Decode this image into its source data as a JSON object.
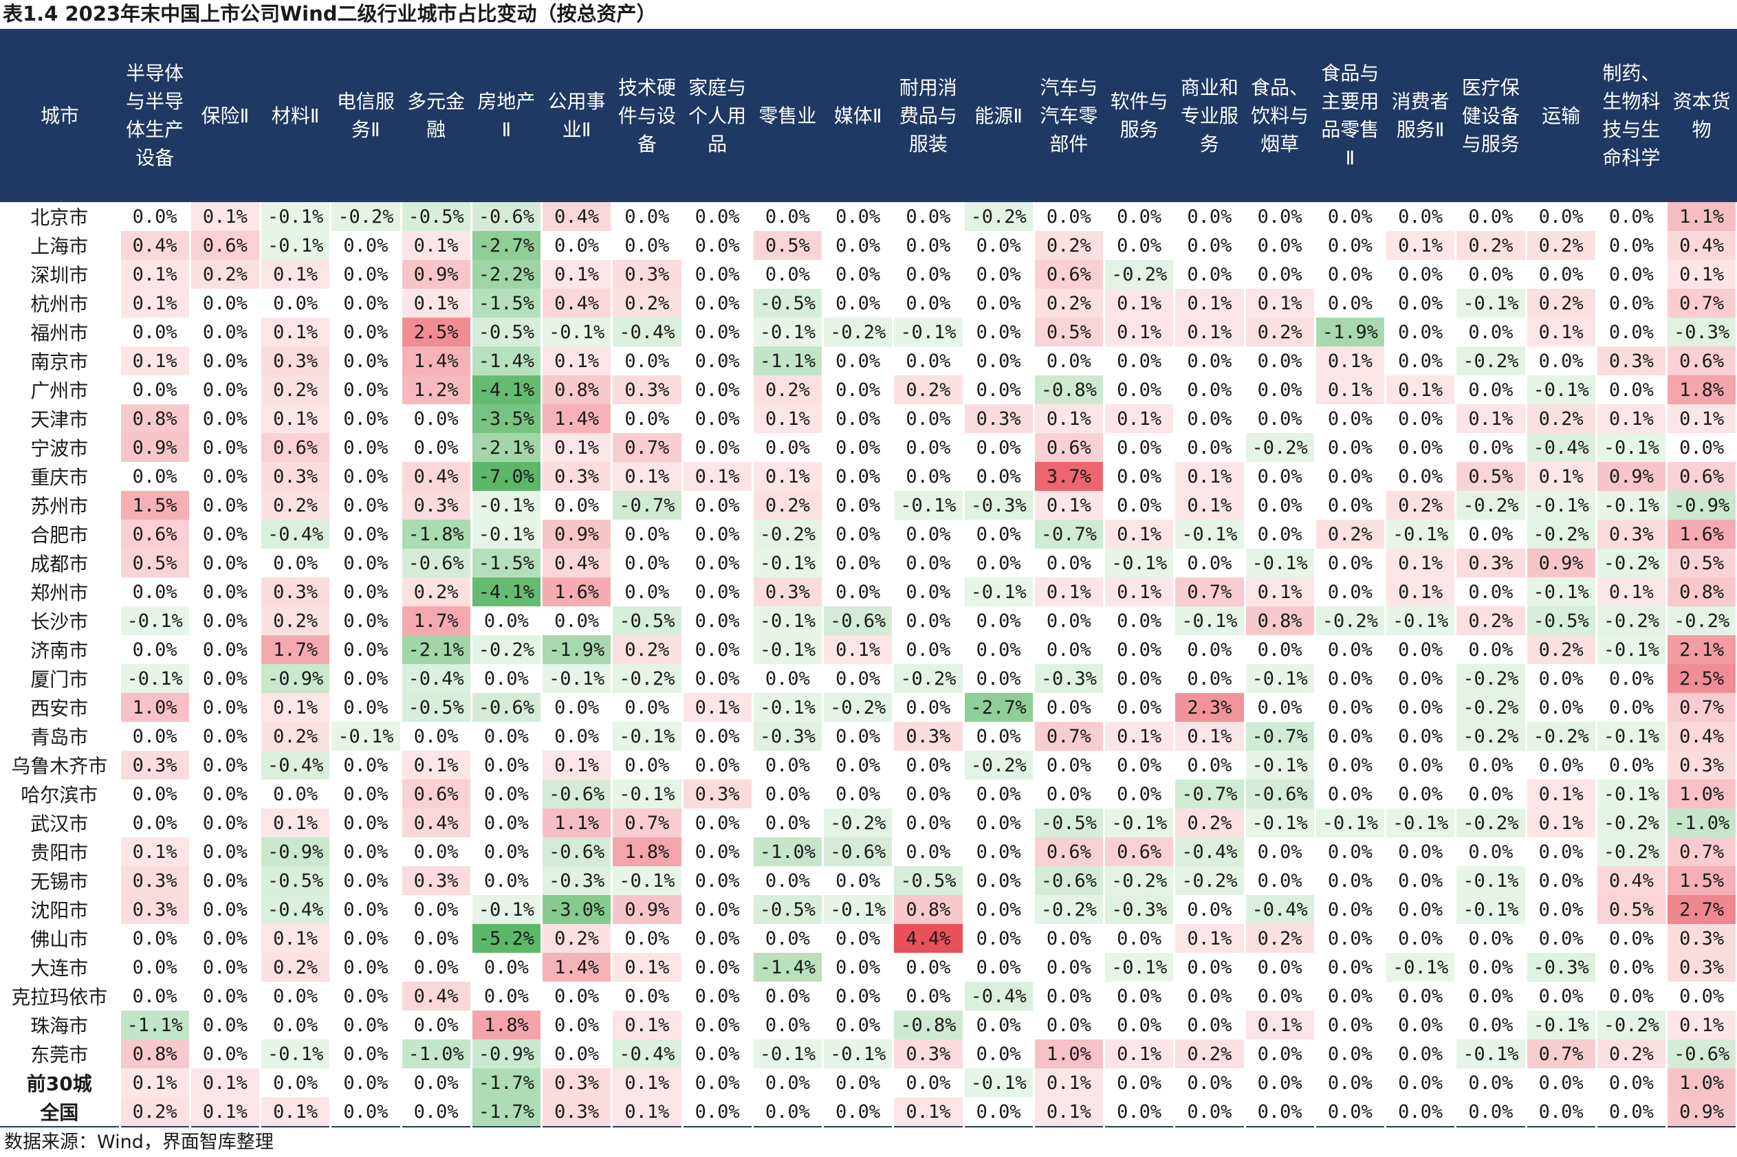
{
  "title": "表1.4 2023年末中国上市公司Wind二级行业城市占比变动（按总资产）",
  "source": "数据来源：Wind，界面智库整理",
  "colors": {
    "header_bg": "#1f3864",
    "header_text": "#ffffff",
    "positive": "#e8505a",
    "negative": "#5cb868"
  },
  "table": {
    "columns": [
      "城市",
      "半导体与半导体生产设备",
      "保险Ⅱ",
      "材料Ⅱ",
      "电信服务Ⅱ",
      "多元金融",
      "房地产Ⅱ",
      "公用事业Ⅱ",
      "技术硬件与设备",
      "家庭与个人用品",
      "零售业",
      "媒体Ⅱ",
      "耐用消费品与服装",
      "能源Ⅱ",
      "汽车与汽车零部件",
      "软件与服务",
      "商业和专业服务",
      "食品、饮料与烟草",
      "食品与主要用品零售Ⅱ",
      "消费者服务Ⅱ",
      "医疗保健设备与服务",
      "运输",
      "制药、生物科技与生命科学",
      "资本货物"
    ],
    "rows": [
      {
        "city": "北京市",
        "values": [
          "0.0%",
          "0.1%",
          "-0.1%",
          "-0.2%",
          "-0.5%",
          "-0.6%",
          "0.4%",
          "0.0%",
          "0.0%",
          "0.0%",
          "0.0%",
          "0.0%",
          "-0.2%",
          "0.0%",
          "0.0%",
          "0.0%",
          "0.0%",
          "0.0%",
          "0.0%",
          "0.0%",
          "0.0%",
          "0.0%",
          "1.1%"
        ]
      },
      {
        "city": "上海市",
        "values": [
          "0.4%",
          "0.6%",
          "-0.1%",
          "0.0%",
          "0.1%",
          "-2.7%",
          "0.0%",
          "0.0%",
          "0.0%",
          "0.5%",
          "0.0%",
          "0.0%",
          "0.0%",
          "0.2%",
          "0.0%",
          "0.0%",
          "0.0%",
          "0.0%",
          "0.1%",
          "0.2%",
          "0.2%",
          "0.0%",
          "0.4%"
        ]
      },
      {
        "city": "深圳市",
        "values": [
          "0.1%",
          "0.2%",
          "0.1%",
          "0.0%",
          "0.9%",
          "-2.2%",
          "0.1%",
          "0.3%",
          "0.0%",
          "0.0%",
          "0.0%",
          "0.0%",
          "0.0%",
          "0.6%",
          "-0.2%",
          "0.0%",
          "0.0%",
          "0.0%",
          "0.0%",
          "0.0%",
          "0.0%",
          "0.0%",
          "0.1%"
        ]
      },
      {
        "city": "杭州市",
        "values": [
          "0.1%",
          "0.0%",
          "0.0%",
          "0.0%",
          "0.1%",
          "-1.5%",
          "0.4%",
          "0.2%",
          "0.0%",
          "-0.5%",
          "0.0%",
          "0.0%",
          "0.0%",
          "0.2%",
          "0.1%",
          "0.1%",
          "0.1%",
          "0.0%",
          "0.0%",
          "-0.1%",
          "0.2%",
          "0.0%",
          "0.7%"
        ]
      },
      {
        "city": "福州市",
        "values": [
          "0.0%",
          "0.0%",
          "0.1%",
          "0.0%",
          "2.5%",
          "-0.5%",
          "-0.1%",
          "-0.4%",
          "0.0%",
          "-0.1%",
          "-0.2%",
          "-0.1%",
          "0.0%",
          "0.5%",
          "0.1%",
          "0.1%",
          "0.2%",
          "-1.9%",
          "0.0%",
          "0.0%",
          "0.1%",
          "0.0%",
          "-0.3%"
        ]
      },
      {
        "city": "南京市",
        "values": [
          "0.1%",
          "0.0%",
          "0.3%",
          "0.0%",
          "1.4%",
          "-1.4%",
          "0.1%",
          "0.0%",
          "0.0%",
          "-1.1%",
          "0.0%",
          "0.0%",
          "0.0%",
          "0.0%",
          "0.0%",
          "0.0%",
          "0.0%",
          "0.1%",
          "0.0%",
          "-0.2%",
          "0.0%",
          "0.3%",
          "0.6%"
        ]
      },
      {
        "city": "广州市",
        "values": [
          "0.0%",
          "0.0%",
          "0.2%",
          "0.0%",
          "1.2%",
          "-4.1%",
          "0.8%",
          "0.3%",
          "0.0%",
          "0.2%",
          "0.0%",
          "0.2%",
          "0.0%",
          "-0.8%",
          "0.0%",
          "0.0%",
          "0.0%",
          "0.1%",
          "0.1%",
          "0.0%",
          "-0.1%",
          "0.0%",
          "1.8%"
        ]
      },
      {
        "city": "天津市",
        "values": [
          "0.8%",
          "0.0%",
          "0.1%",
          "0.0%",
          "0.0%",
          "-3.5%",
          "1.4%",
          "0.0%",
          "0.0%",
          "0.1%",
          "0.0%",
          "0.0%",
          "0.3%",
          "0.1%",
          "0.1%",
          "0.0%",
          "0.0%",
          "0.0%",
          "0.0%",
          "0.1%",
          "0.2%",
          "0.1%",
          "0.1%"
        ]
      },
      {
        "city": "宁波市",
        "values": [
          "0.9%",
          "0.0%",
          "0.6%",
          "0.0%",
          "0.0%",
          "-2.1%",
          "0.1%",
          "0.7%",
          "0.0%",
          "0.0%",
          "0.0%",
          "0.0%",
          "0.0%",
          "0.6%",
          "0.0%",
          "0.0%",
          "-0.2%",
          "0.0%",
          "0.0%",
          "0.0%",
          "-0.4%",
          "-0.1%",
          "0.0%"
        ]
      },
      {
        "city": "重庆市",
        "values": [
          "0.0%",
          "0.0%",
          "0.3%",
          "0.0%",
          "0.4%",
          "-7.0%",
          "0.3%",
          "0.1%",
          "0.1%",
          "0.1%",
          "0.0%",
          "0.0%",
          "0.0%",
          "3.7%",
          "0.0%",
          "0.1%",
          "0.0%",
          "0.0%",
          "0.0%",
          "0.5%",
          "0.1%",
          "0.9%",
          "0.6%"
        ]
      },
      {
        "city": "苏州市",
        "values": [
          "1.5%",
          "0.0%",
          "0.2%",
          "0.0%",
          "0.3%",
          "-0.1%",
          "0.0%",
          "-0.7%",
          "0.0%",
          "0.2%",
          "0.0%",
          "-0.1%",
          "-0.3%",
          "0.1%",
          "0.0%",
          "0.1%",
          "0.0%",
          "0.0%",
          "0.2%",
          "-0.2%",
          "-0.1%",
          "-0.1%",
          "-0.9%"
        ]
      },
      {
        "city": "合肥市",
        "values": [
          "0.6%",
          "0.0%",
          "-0.4%",
          "0.0%",
          "-1.8%",
          "-0.1%",
          "0.9%",
          "0.0%",
          "0.0%",
          "-0.2%",
          "0.0%",
          "0.0%",
          "0.0%",
          "-0.7%",
          "0.1%",
          "-0.1%",
          "0.0%",
          "0.2%",
          "-0.1%",
          "0.0%",
          "-0.2%",
          "0.3%",
          "1.6%"
        ]
      },
      {
        "city": "成都市",
        "values": [
          "0.5%",
          "0.0%",
          "0.0%",
          "0.0%",
          "-0.6%",
          "-1.5%",
          "0.4%",
          "0.0%",
          "0.0%",
          "-0.1%",
          "0.0%",
          "0.0%",
          "0.0%",
          "0.0%",
          "-0.1%",
          "0.0%",
          "-0.1%",
          "0.0%",
          "0.1%",
          "0.3%",
          "0.9%",
          "-0.2%",
          "0.5%"
        ]
      },
      {
        "city": "郑州市",
        "values": [
          "0.0%",
          "0.0%",
          "0.3%",
          "0.0%",
          "0.2%",
          "-4.1%",
          "1.6%",
          "0.0%",
          "0.0%",
          "0.3%",
          "0.0%",
          "0.0%",
          "-0.1%",
          "0.1%",
          "0.1%",
          "0.7%",
          "0.1%",
          "0.0%",
          "0.1%",
          "0.0%",
          "-0.1%",
          "0.1%",
          "0.8%"
        ]
      },
      {
        "city": "长沙市",
        "values": [
          "-0.1%",
          "0.0%",
          "0.2%",
          "0.0%",
          "1.7%",
          "0.0%",
          "0.0%",
          "-0.5%",
          "0.0%",
          "-0.1%",
          "-0.6%",
          "0.0%",
          "0.0%",
          "0.0%",
          "0.0%",
          "-0.1%",
          "0.8%",
          "-0.2%",
          "-0.1%",
          "0.2%",
          "-0.5%",
          "-0.2%",
          "-0.2%"
        ]
      },
      {
        "city": "济南市",
        "values": [
          "0.0%",
          "0.0%",
          "1.7%",
          "0.0%",
          "-2.1%",
          "-0.2%",
          "-1.9%",
          "0.2%",
          "0.0%",
          "-0.1%",
          "0.1%",
          "0.0%",
          "0.0%",
          "0.0%",
          "0.0%",
          "0.0%",
          "0.0%",
          "0.0%",
          "0.0%",
          "0.0%",
          "0.2%",
          "-0.1%",
          "2.1%"
        ]
      },
      {
        "city": "厦门市",
        "values": [
          "-0.1%",
          "0.0%",
          "-0.9%",
          "0.0%",
          "-0.4%",
          "0.0%",
          "-0.1%",
          "-0.2%",
          "0.0%",
          "0.0%",
          "0.0%",
          "-0.2%",
          "0.0%",
          "-0.3%",
          "0.0%",
          "0.0%",
          "-0.1%",
          "0.0%",
          "0.0%",
          "-0.2%",
          "0.0%",
          "0.0%",
          "2.5%"
        ]
      },
      {
        "city": "西安市",
        "values": [
          "1.0%",
          "0.0%",
          "0.1%",
          "0.0%",
          "-0.5%",
          "-0.6%",
          "0.0%",
          "0.0%",
          "0.1%",
          "-0.1%",
          "-0.2%",
          "0.0%",
          "-2.7%",
          "0.0%",
          "0.0%",
          "2.3%",
          "0.0%",
          "0.0%",
          "0.0%",
          "-0.2%",
          "0.0%",
          "0.0%",
          "0.7%"
        ]
      },
      {
        "city": "青岛市",
        "values": [
          "0.0%",
          "0.0%",
          "0.2%",
          "-0.1%",
          "0.0%",
          "0.0%",
          "0.0%",
          "-0.1%",
          "0.0%",
          "-0.3%",
          "0.0%",
          "0.3%",
          "0.0%",
          "0.7%",
          "0.1%",
          "0.1%",
          "-0.7%",
          "0.0%",
          "0.0%",
          "-0.2%",
          "-0.2%",
          "-0.1%",
          "0.4%"
        ]
      },
      {
        "city": "乌鲁木齐市",
        "values": [
          "0.3%",
          "0.0%",
          "-0.4%",
          "0.0%",
          "0.1%",
          "0.0%",
          "0.1%",
          "0.0%",
          "0.0%",
          "0.0%",
          "0.0%",
          "0.0%",
          "-0.2%",
          "0.0%",
          "0.0%",
          "0.0%",
          "-0.1%",
          "0.0%",
          "0.0%",
          "0.0%",
          "0.0%",
          "0.0%",
          "0.3%"
        ]
      },
      {
        "city": "哈尔滨市",
        "values": [
          "0.0%",
          "0.0%",
          "0.0%",
          "0.0%",
          "0.6%",
          "0.0%",
          "-0.6%",
          "-0.1%",
          "0.3%",
          "0.0%",
          "0.0%",
          "0.0%",
          "0.0%",
          "0.0%",
          "0.0%",
          "-0.7%",
          "-0.6%",
          "0.0%",
          "0.0%",
          "0.0%",
          "0.1%",
          "-0.1%",
          "1.0%"
        ]
      },
      {
        "city": "武汉市",
        "values": [
          "0.0%",
          "0.0%",
          "0.1%",
          "0.0%",
          "0.4%",
          "0.0%",
          "1.1%",
          "0.7%",
          "0.0%",
          "0.0%",
          "-0.2%",
          "0.0%",
          "0.0%",
          "-0.5%",
          "-0.1%",
          "0.2%",
          "-0.1%",
          "-0.1%",
          "-0.1%",
          "-0.2%",
          "0.1%",
          "-0.2%",
          "-1.0%"
        ]
      },
      {
        "city": "贵阳市",
        "values": [
          "0.1%",
          "0.0%",
          "-0.9%",
          "0.0%",
          "0.0%",
          "0.0%",
          "-0.6%",
          "1.8%",
          "0.0%",
          "-1.0%",
          "-0.6%",
          "0.0%",
          "0.0%",
          "0.6%",
          "0.6%",
          "-0.4%",
          "0.0%",
          "0.0%",
          "0.0%",
          "0.0%",
          "0.0%",
          "-0.2%",
          "0.7%"
        ]
      },
      {
        "city": "无锡市",
        "values": [
          "0.3%",
          "0.0%",
          "-0.5%",
          "0.0%",
          "0.3%",
          "0.0%",
          "-0.3%",
          "-0.1%",
          "0.0%",
          "0.0%",
          "0.0%",
          "-0.5%",
          "0.0%",
          "-0.6%",
          "-0.2%",
          "-0.2%",
          "0.0%",
          "0.0%",
          "0.0%",
          "-0.1%",
          "0.0%",
          "0.4%",
          "1.5%"
        ]
      },
      {
        "city": "沈阳市",
        "values": [
          "0.3%",
          "0.0%",
          "-0.4%",
          "0.0%",
          "0.0%",
          "-0.1%",
          "-3.0%",
          "0.9%",
          "0.0%",
          "-0.5%",
          "-0.1%",
          "0.8%",
          "0.0%",
          "-0.2%",
          "-0.3%",
          "0.0%",
          "-0.4%",
          "0.0%",
          "0.0%",
          "-0.1%",
          "0.0%",
          "0.5%",
          "2.7%"
        ]
      },
      {
        "city": "佛山市",
        "values": [
          "0.0%",
          "0.0%",
          "0.1%",
          "0.0%",
          "0.0%",
          "-5.2%",
          "0.2%",
          "0.0%",
          "0.0%",
          "0.0%",
          "0.0%",
          "4.4%",
          "0.0%",
          "0.0%",
          "0.0%",
          "0.1%",
          "0.2%",
          "0.0%",
          "0.0%",
          "0.0%",
          "0.0%",
          "0.0%",
          "0.3%"
        ]
      },
      {
        "city": "大连市",
        "values": [
          "0.0%",
          "0.0%",
          "0.2%",
          "0.0%",
          "0.0%",
          "0.0%",
          "1.4%",
          "0.1%",
          "0.0%",
          "-1.4%",
          "0.0%",
          "0.0%",
          "0.0%",
          "0.0%",
          "-0.1%",
          "0.0%",
          "0.0%",
          "0.0%",
          "-0.1%",
          "0.0%",
          "-0.3%",
          "0.0%",
          "0.3%"
        ]
      },
      {
        "city": "克拉玛依市",
        "values": [
          "0.0%",
          "0.0%",
          "0.0%",
          "0.0%",
          "0.4%",
          "0.0%",
          "0.0%",
          "0.0%",
          "0.0%",
          "0.0%",
          "0.0%",
          "0.0%",
          "-0.4%",
          "0.0%",
          "0.0%",
          "0.0%",
          "0.0%",
          "0.0%",
          "0.0%",
          "0.0%",
          "0.0%",
          "0.0%",
          "0.0%"
        ]
      },
      {
        "city": "珠海市",
        "values": [
          "-1.1%",
          "0.0%",
          "0.0%",
          "0.0%",
          "0.0%",
          "1.8%",
          "0.0%",
          "0.1%",
          "0.0%",
          "0.0%",
          "0.0%",
          "-0.8%",
          "0.0%",
          "0.0%",
          "0.0%",
          "0.0%",
          "0.1%",
          "0.0%",
          "0.0%",
          "0.0%",
          "-0.1%",
          "-0.2%",
          "0.1%"
        ]
      },
      {
        "city": "东莞市",
        "values": [
          "0.8%",
          "0.0%",
          "-0.1%",
          "0.0%",
          "-1.0%",
          "-0.9%",
          "0.0%",
          "-0.4%",
          "0.0%",
          "-0.1%",
          "-0.1%",
          "0.3%",
          "0.0%",
          "1.0%",
          "0.1%",
          "0.2%",
          "0.0%",
          "0.0%",
          "0.0%",
          "-0.1%",
          "0.7%",
          "0.2%",
          "-0.6%"
        ]
      },
      {
        "city": "前30城",
        "values": [
          "0.1%",
          "0.1%",
          "0.0%",
          "0.0%",
          "0.0%",
          "-1.7%",
          "0.3%",
          "0.1%",
          "0.0%",
          "0.0%",
          "0.0%",
          "0.0%",
          "-0.1%",
          "0.1%",
          "0.0%",
          "0.0%",
          "0.0%",
          "0.0%",
          "0.0%",
          "0.0%",
          "0.0%",
          "0.0%",
          "1.0%"
        ],
        "aggregate": true
      },
      {
        "city": "全国",
        "values": [
          "0.2%",
          "0.1%",
          "0.1%",
          "0.0%",
          "0.0%",
          "-1.7%",
          "0.3%",
          "0.1%",
          "0.0%",
          "0.0%",
          "0.0%",
          "0.1%",
          "0.0%",
          "0.1%",
          "0.0%",
          "0.0%",
          "0.0%",
          "0.0%",
          "0.0%",
          "0.0%",
          "0.0%",
          "0.0%",
          "0.9%"
        ],
        "aggregate": true
      }
    ]
  }
}
